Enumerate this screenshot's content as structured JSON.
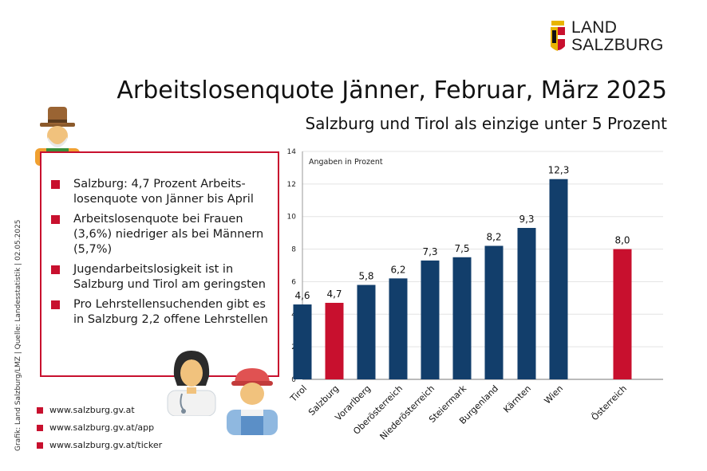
{
  "brand": {
    "line1": "LAND",
    "line2": "SALZBURG"
  },
  "title": "Arbeitslosenquote Jänner, Februar, März 2025",
  "subtitle": "Salzburg und Tirol als einzige unter 5 Prozent",
  "credit": "Grafik: Land Salzburg/LMZ | Quelle: Landesstatistik | 02.05.2025",
  "info_bullets": [
    "Salzburg: 4,7 Prozent Arbeits-losenquote von Jänner bis April",
    "Arbeitslosenquote bei Frauen (3,6%) niedriger als bei Männern (5,7%)",
    "Jugendarbeitslosigkeit ist in Salzburg und Tirol am geringsten",
    "Pro Lehrstellensuchenden gibt es in Salzburg 2,2 offene Lehrstellen"
  ],
  "links": [
    "www.salzburg.gv.at",
    "www.salzburg.gv.at/app",
    "www.salzburg.gv.at/ticker"
  ],
  "colors": {
    "navy": "#123e6b",
    "red": "#c8102e"
  },
  "chart_data": {
    "type": "bar",
    "annotation": "Angaben in Prozent",
    "categories": [
      "Tirol",
      "Salzburg",
      "Vorarlberg",
      "Oberösterreich",
      "Niederösterreich",
      "Steiermark",
      "Burgenland",
      "Kärnten",
      "Wien",
      "Österreich"
    ],
    "values": [
      4.6,
      4.7,
      5.8,
      6.2,
      7.3,
      7.5,
      8.2,
      9.3,
      12.3,
      8.0
    ],
    "value_labels": [
      "4,6",
      "4,7",
      "5,8",
      "6,2",
      "7,3",
      "7,5",
      "8,2",
      "9,3",
      "12,3",
      "8,0"
    ],
    "highlight": [
      "Salzburg",
      "Österreich"
    ],
    "ylim": [
      0,
      14
    ],
    "yticks": [
      0,
      2,
      4,
      6,
      8,
      10,
      12,
      14
    ],
    "grid": true
  }
}
